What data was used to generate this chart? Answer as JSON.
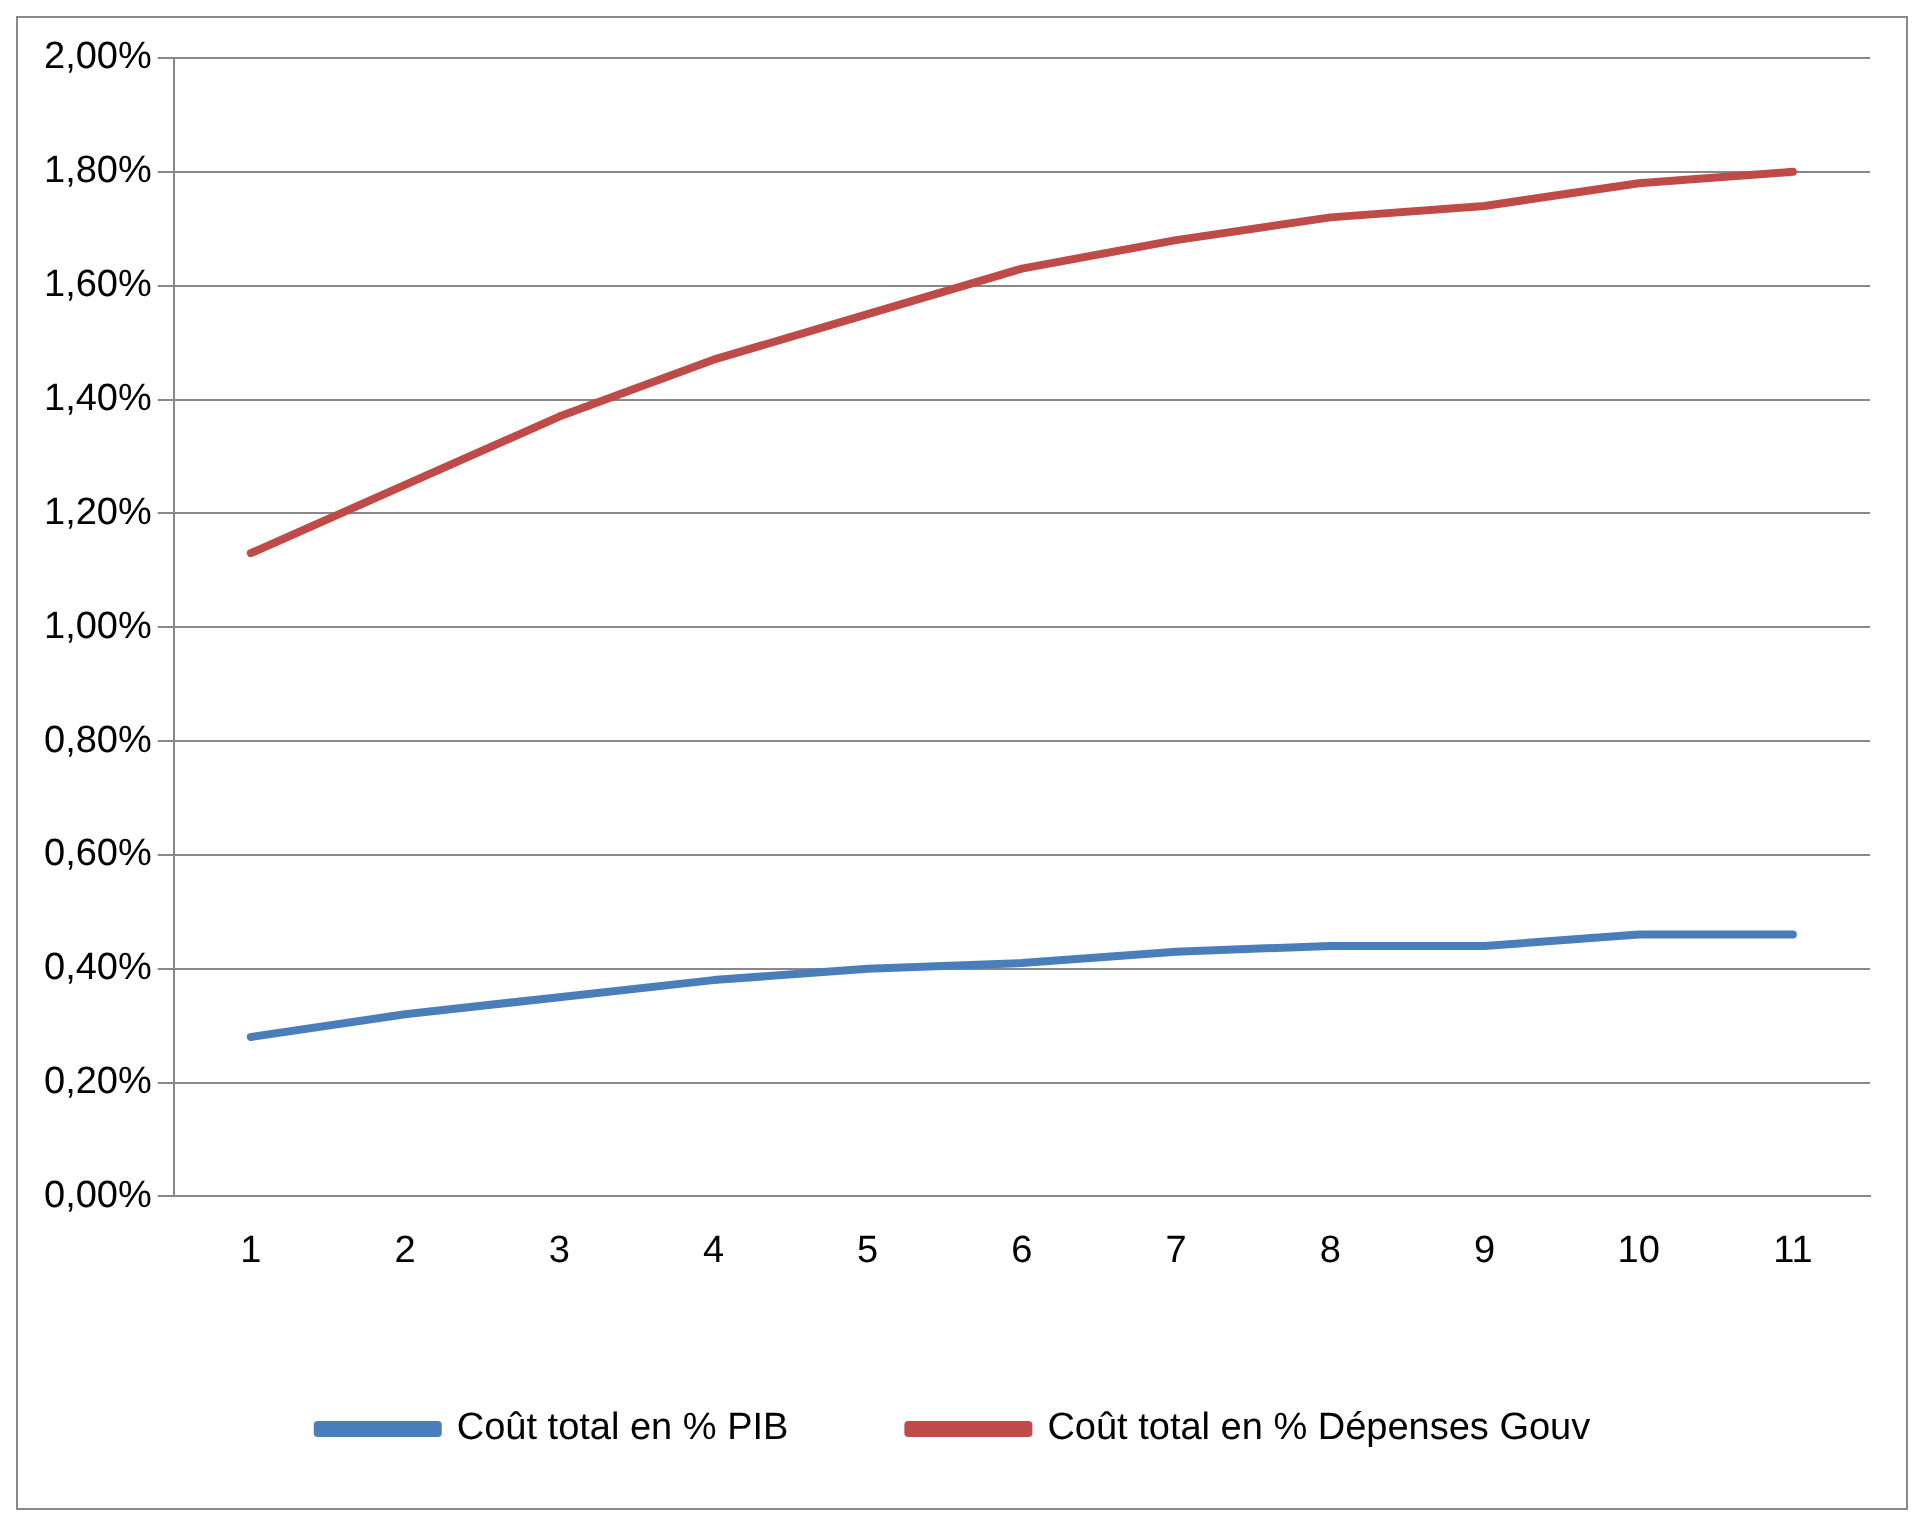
{
  "chart_data": {
    "type": "line",
    "categories": [
      "1",
      "2",
      "3",
      "4",
      "5",
      "6",
      "7",
      "8",
      "9",
      "10",
      "11"
    ],
    "series": [
      {
        "name": "Coût total en % PIB",
        "color": "#4a7ebb",
        "values": [
          0.28,
          0.32,
          0.35,
          0.38,
          0.4,
          0.41,
          0.43,
          0.44,
          0.44,
          0.46,
          0.46
        ]
      },
      {
        "name": "Coût total en % Dépenses Gouv",
        "color": "#be4b48",
        "values": [
          1.13,
          1.25,
          1.37,
          1.47,
          1.55,
          1.63,
          1.68,
          1.72,
          1.74,
          1.78,
          1.8
        ]
      }
    ],
    "ylim": [
      0,
      2
    ],
    "yticks": [
      {
        "value": 0,
        "label": "0,00%"
      },
      {
        "value": 0.2,
        "label": "0,20%"
      },
      {
        "value": 0.4,
        "label": "0,40%"
      },
      {
        "value": 0.6,
        "label": "0,60%"
      },
      {
        "value": 0.8,
        "label": "0,80%"
      },
      {
        "value": 1,
        "label": "1,00%"
      },
      {
        "value": 1.2,
        "label": "1,20%"
      },
      {
        "value": 1.4,
        "label": "1,40%"
      },
      {
        "value": 1.6,
        "label": "1,60%"
      },
      {
        "value": 1.8,
        "label": "1,80%"
      },
      {
        "value": 2,
        "label": "2,00%"
      }
    ],
    "grid": "y",
    "legend": "bottom",
    "marker": "none",
    "line_style": "solid"
  }
}
